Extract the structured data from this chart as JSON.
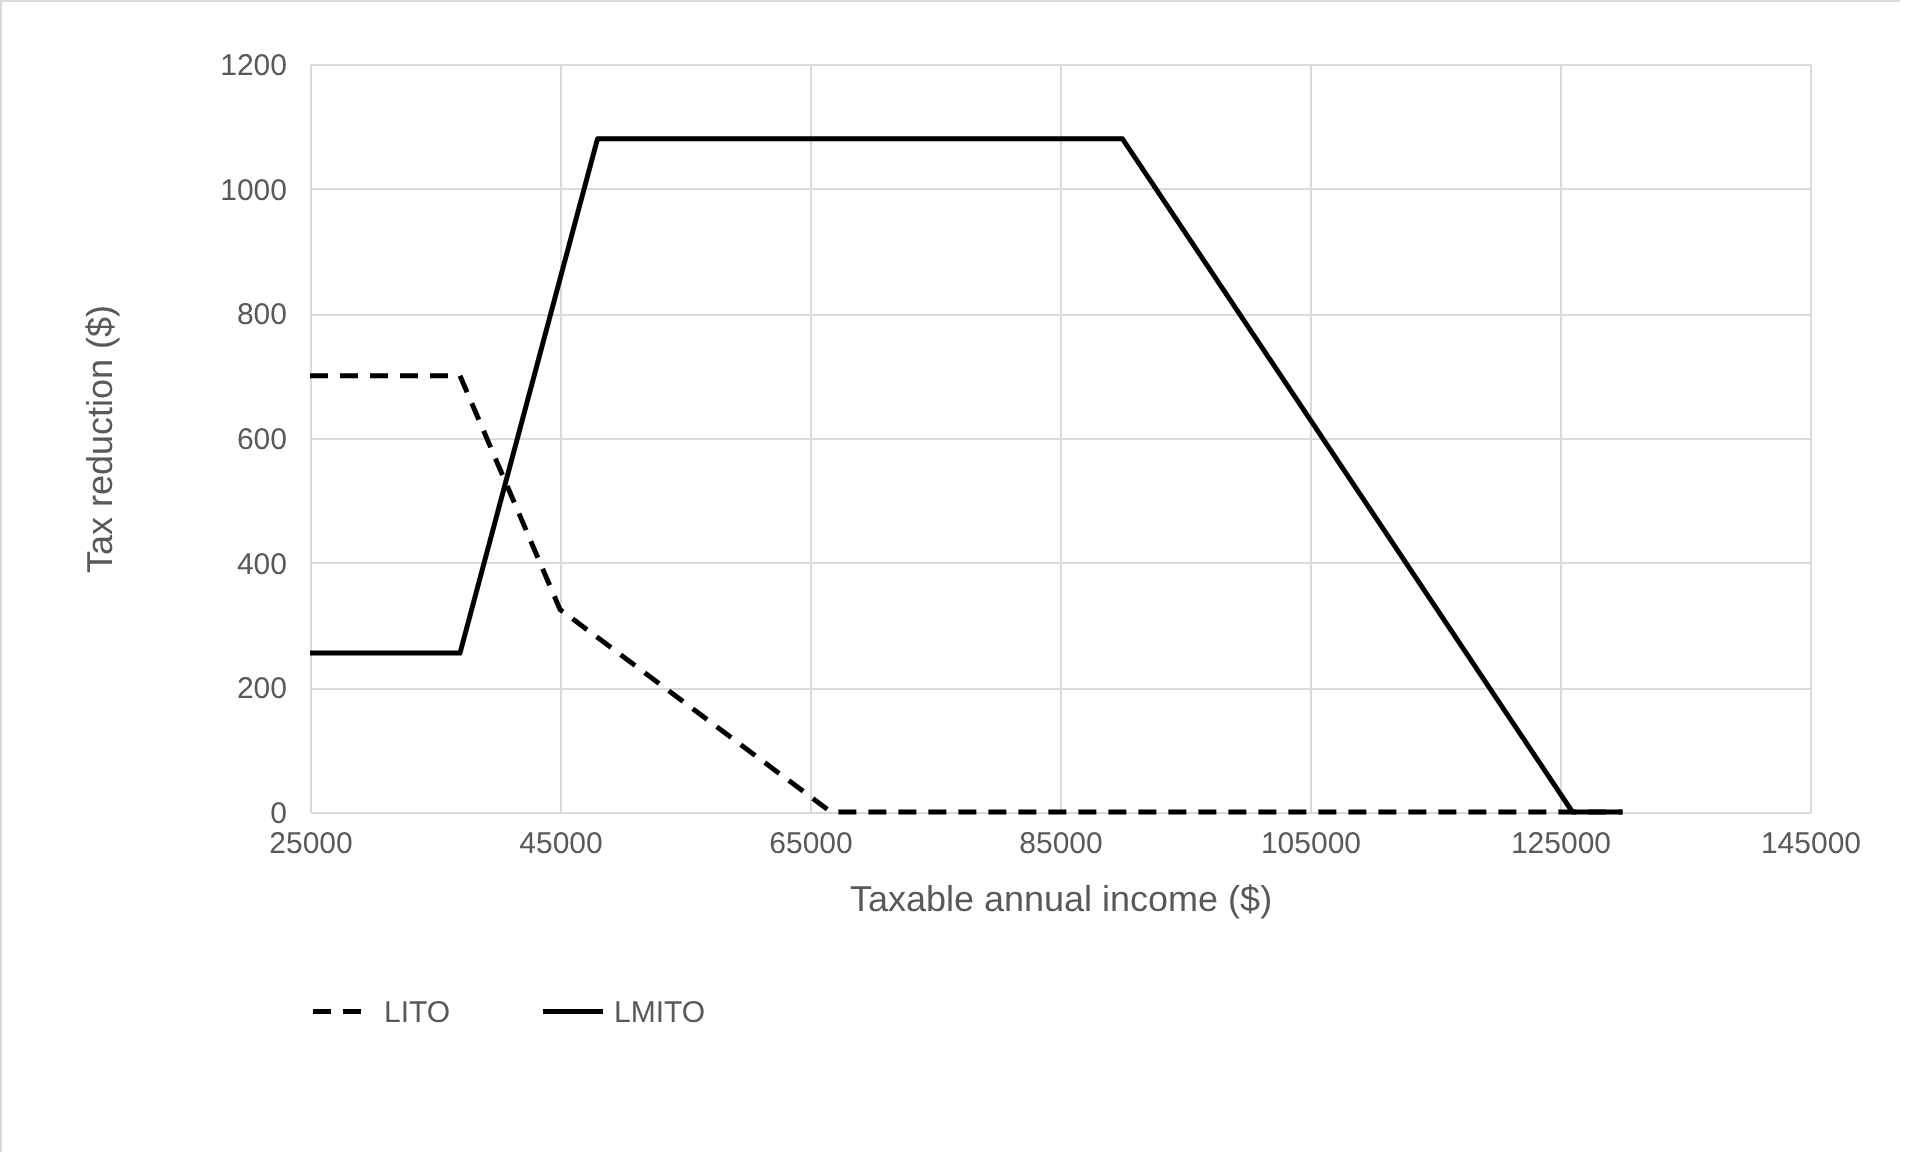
{
  "chart_data": {
    "type": "line",
    "xlabel": "Taxable annual income ($)",
    "ylabel": "Tax reduction ($)",
    "series": [
      {
        "name": "LITO",
        "color": "#000000",
        "line_style": "dashed",
        "x": [
          25000,
          37000,
          45000,
          66667,
          130000
        ],
        "values": [
          700,
          700,
          325,
          0,
          0
        ]
      },
      {
        "name": "LMITO",
        "color": "#000000",
        "line_style": "solid",
        "x": [
          25000,
          37000,
          48000,
          90000,
          126000,
          130000
        ],
        "values": [
          255,
          255,
          1080,
          1080,
          0,
          0
        ]
      }
    ],
    "xlim": [
      25000,
      145000
    ],
    "xticks": [
      25000,
      45000,
      65000,
      85000,
      105000,
      125000,
      145000
    ],
    "ylim": [
      0,
      1200
    ],
    "yticks": [
      0,
      200,
      400,
      600,
      800,
      1000,
      1200
    ],
    "grid": true,
    "legend": "bottom",
    "marker": "none"
  }
}
